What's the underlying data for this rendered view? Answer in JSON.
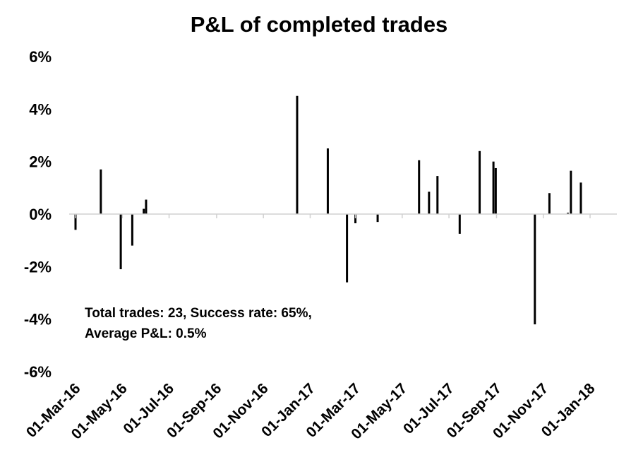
{
  "chart_data": {
    "type": "bar",
    "title": "P&L of completed trades",
    "xlabel": "",
    "ylabel": "",
    "x_axis": {
      "type": "date",
      "range": [
        "2016-03-01",
        "2018-01-01"
      ],
      "tick_dates": [
        "2016-03-01",
        "2016-05-01",
        "2016-07-01",
        "2016-09-01",
        "2016-11-01",
        "2017-01-01",
        "2017-03-01",
        "2017-05-01",
        "2017-07-01",
        "2017-09-01",
        "2017-11-01",
        "2018-01-01"
      ],
      "tick_labels": [
        "01-Mar-16",
        "01-May-16",
        "01-Jul-16",
        "01-Sep-16",
        "01-Nov-16",
        "01-Jan-17",
        "01-Mar-17",
        "01-May-17",
        "01-Jul-17",
        "01-Sep-17",
        "01-Nov-17",
        "01-Jan-18"
      ]
    },
    "y_axis": {
      "ylim": [
        -6,
        6
      ],
      "unit": "%",
      "tick_values": [
        6,
        4,
        2,
        0,
        -2,
        -4,
        -6
      ],
      "tick_labels": [
        "6%",
        "4%",
        "2%",
        "0%",
        "-2%",
        "-4%",
        "-6%"
      ]
    },
    "grid": false,
    "legend": "none",
    "series": [
      {
        "name": "P&L",
        "color": "#000000",
        "points": [
          {
            "date": "2016-03-01",
            "value": -0.6
          },
          {
            "date": "2016-04-03",
            "value": 1.7
          },
          {
            "date": "2016-04-29",
            "value": -2.1
          },
          {
            "date": "2016-05-14",
            "value": -1.2
          },
          {
            "date": "2016-05-29",
            "value": 0.2
          },
          {
            "date": "2016-06-01",
            "value": 0.55
          },
          {
            "date": "2016-12-15",
            "value": 4.5
          },
          {
            "date": "2017-01-24",
            "value": 2.5
          },
          {
            "date": "2017-02-18",
            "value": -2.6
          },
          {
            "date": "2017-03-01",
            "value": -0.35
          },
          {
            "date": "2017-03-30",
            "value": -0.3
          },
          {
            "date": "2017-05-23",
            "value": 2.05
          },
          {
            "date": "2017-06-05",
            "value": 0.85
          },
          {
            "date": "2017-06-16",
            "value": 1.45
          },
          {
            "date": "2017-07-15",
            "value": -0.75
          },
          {
            "date": "2017-08-10",
            "value": 2.4
          },
          {
            "date": "2017-08-28",
            "value": 2.0
          },
          {
            "date": "2017-08-31",
            "value": 1.75
          },
          {
            "date": "2017-10-21",
            "value": -4.2
          },
          {
            "date": "2017-11-09",
            "value": 0.8
          },
          {
            "date": "2017-12-03",
            "value": 0.05
          },
          {
            "date": "2017-12-07",
            "value": 1.65
          },
          {
            "date": "2017-12-20",
            "value": 1.2
          }
        ]
      }
    ],
    "annotation_lines": [
      "Total trades: 23, Success rate: 65%,",
      "Average P&L: 0.5%"
    ]
  }
}
